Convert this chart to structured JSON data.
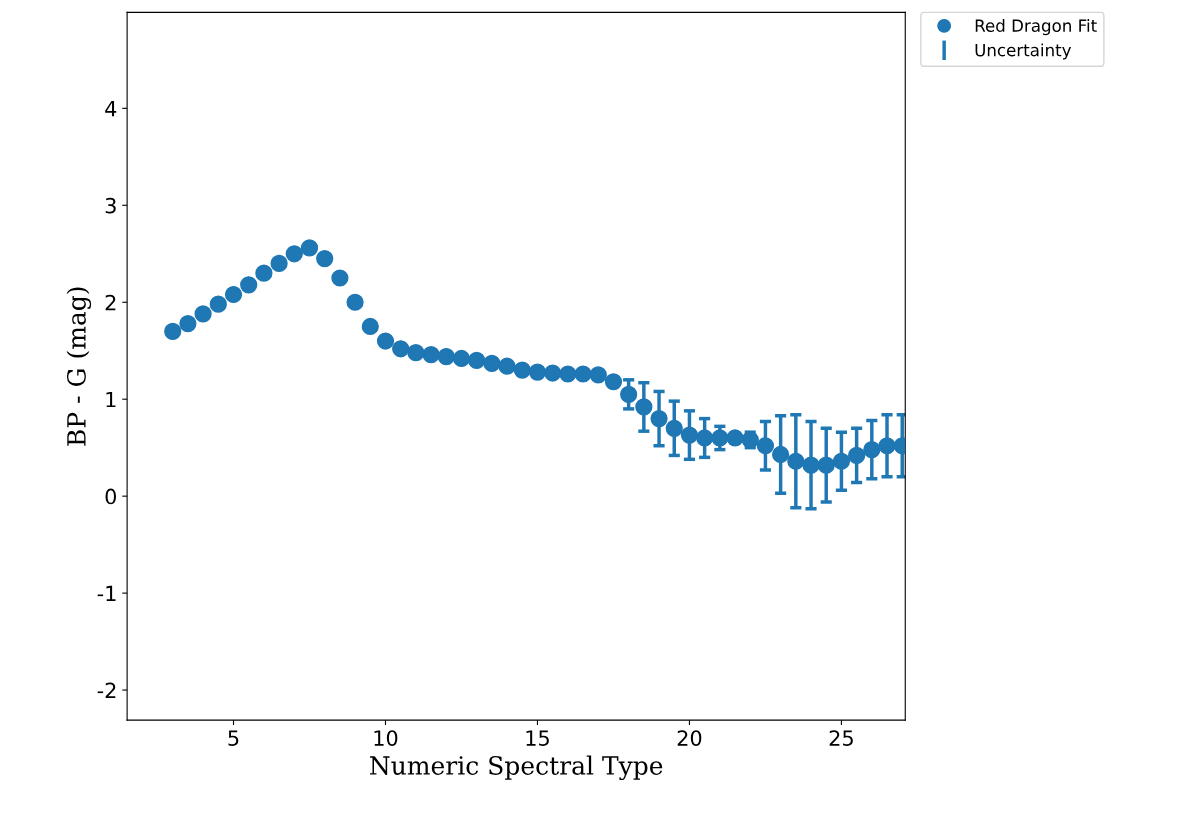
{
  "chart_data": {
    "type": "scatter",
    "xlabel": "Numeric Spectral Type",
    "ylabel": "BP - G (mag)",
    "x": [
      3,
      3.5,
      4,
      4.5,
      5,
      5.5,
      6,
      6.5,
      7,
      7.5,
      8,
      8.5,
      9,
      9.5,
      10,
      10.5,
      11,
      11.5,
      12,
      12.5,
      13,
      13.5,
      14,
      14.5,
      15,
      15.5,
      16,
      16.5,
      17,
      17.5,
      18,
      18.5,
      19,
      19.5,
      20,
      20.5,
      21,
      21.5,
      22,
      22.5,
      23,
      23.5,
      24,
      24.5,
      25,
      25.5,
      26,
      26.5,
      27
    ],
    "series": [
      {
        "name": "Red Dragon Fit",
        "color": "#1f77b4",
        "marker": "circle",
        "values": [
          1.7,
          1.78,
          1.88,
          1.98,
          2.08,
          2.18,
          2.3,
          2.4,
          2.5,
          2.56,
          2.45,
          2.25,
          2.0,
          1.75,
          1.6,
          1.52,
          1.48,
          1.46,
          1.44,
          1.42,
          1.4,
          1.37,
          1.34,
          1.3,
          1.28,
          1.27,
          1.26,
          1.26,
          1.25,
          1.18,
          1.05,
          0.92,
          0.8,
          0.7,
          0.63,
          0.6,
          0.6,
          0.6,
          0.58,
          0.52,
          0.43,
          0.36,
          0.32,
          0.32,
          0.36,
          0.42,
          0.48,
          0.52,
          0.52
        ],
        "errors": [
          null,
          null,
          null,
          null,
          null,
          null,
          null,
          null,
          null,
          null,
          null,
          null,
          null,
          null,
          null,
          null,
          null,
          null,
          null,
          null,
          null,
          null,
          null,
          null,
          null,
          null,
          null,
          null,
          null,
          0.05,
          0.15,
          0.25,
          0.28,
          0.28,
          0.25,
          0.2,
          0.12,
          0.05,
          0.08,
          0.25,
          0.4,
          0.48,
          0.45,
          0.38,
          0.3,
          0.28,
          0.3,
          0.32,
          0.32
        ]
      }
    ],
    "annotations": [
      "Uncertainty"
    ],
    "xlim": [
      1.5,
      27.1
    ],
    "xticks": [
      5,
      10,
      15,
      20,
      25
    ],
    "ylim": [
      -2.31,
      4.99
    ],
    "yticks": [
      -2,
      -1,
      0,
      1,
      2,
      3,
      4
    ],
    "grid": false,
    "legend": "top right"
  }
}
